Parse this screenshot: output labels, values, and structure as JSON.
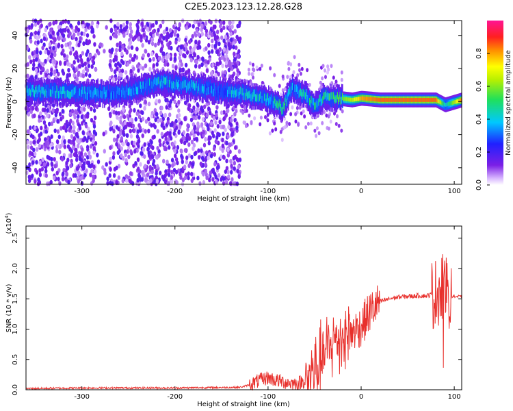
{
  "title": "C2E5.2023.123.12.28.G28",
  "chart_data": [
    {
      "type": "heatmap",
      "xlabel": "Height of straight line (km)",
      "ylabel": "Frequency (Hz)",
      "xlim": [
        -360,
        108
      ],
      "ylim": [
        -50,
        49
      ],
      "xticks": [
        -300,
        -200,
        -100,
        0,
        100
      ],
      "yticks": [
        -40,
        -20,
        0,
        20,
        40
      ],
      "colorbar": {
        "label": "Normalized spectral amplitude",
        "range": [
          0.0,
          1.0
        ],
        "ticks": [
          "0.0",
          "0.2",
          "0.4",
          "0.6",
          "0.8"
        ],
        "colormap": "rainbow (purple-blue-cyan-green-yellow-red-magenta)"
      },
      "ridge": [
        {
          "x": -330,
          "y": 6,
          "amp": 0.45
        },
        {
          "x": -300,
          "y": 5,
          "amp": 0.4
        },
        {
          "x": -260,
          "y": 5,
          "amp": 0.35
        },
        {
          "x": -215,
          "y": 12,
          "amp": 0.45
        },
        {
          "x": -150,
          "y": 6,
          "amp": 0.35
        },
        {
          "x": -130,
          "y": 5,
          "amp": 0.45
        },
        {
          "x": -110,
          "y": 3,
          "amp": 0.45
        },
        {
          "x": -95,
          "y": 0,
          "amp": 0.5
        },
        {
          "x": -85,
          "y": -4,
          "amp": 0.55
        },
        {
          "x": -75,
          "y": 8,
          "amp": 0.4
        },
        {
          "x": -60,
          "y": 4,
          "amp": 0.45
        },
        {
          "x": -50,
          "y": -3,
          "amp": 0.5
        },
        {
          "x": -40,
          "y": 3,
          "amp": 0.5
        },
        {
          "x": -25,
          "y": 2,
          "amp": 0.55
        },
        {
          "x": -10,
          "y": 1,
          "amp": 0.65
        },
        {
          "x": 0,
          "y": 2,
          "amp": 0.8
        },
        {
          "x": 20,
          "y": 1,
          "amp": 0.85
        },
        {
          "x": 50,
          "y": 1,
          "amp": 0.85
        },
        {
          "x": 80,
          "y": 1,
          "amp": 0.85
        },
        {
          "x": 90,
          "y": -2,
          "amp": 0.4
        },
        {
          "x": 108,
          "y": 1,
          "amp": 0.85
        }
      ]
    },
    {
      "type": "line",
      "xlabel": "Height of straight line (km)",
      "ylabel": "SNR (10 * v/v)",
      "yscale_label": "(x10",
      "yscale_exp": "4",
      "yscale_close": ")",
      "xlim": [
        -360,
        108
      ],
      "ylim": [
        0,
        2.7
      ],
      "xticks": [
        -300,
        -200,
        -100,
        0,
        100
      ],
      "yticks": [
        "0.0",
        "0.5",
        "1.0",
        "1.5",
        "2.0",
        "2.5"
      ],
      "series": [
        {
          "color": "#e8302c",
          "x": [
            -360,
            -300,
            -200,
            -130,
            -120,
            -110,
            -100,
            -90,
            -80,
            -70,
            -60,
            -50,
            -40,
            -30,
            -20,
            -10,
            0,
            10,
            20,
            30,
            40,
            50,
            60,
            70,
            80,
            85,
            90,
            93,
            95,
            100,
            108
          ],
          "y": [
            0.02,
            0.03,
            0.03,
            0.04,
            0.08,
            0.15,
            0.2,
            0.15,
            0.12,
            0.1,
            0.15,
            0.3,
            0.55,
            0.8,
            0.9,
            0.95,
            1.05,
            1.3,
            1.45,
            1.5,
            1.53,
            1.54,
            1.55,
            1.55,
            1.58,
            1.7,
            1.6,
            1.75,
            1.55,
            1.54,
            1.53
          ]
        }
      ]
    }
  ],
  "colors": {
    "line": "#e8302c",
    "axes": "#000000"
  }
}
